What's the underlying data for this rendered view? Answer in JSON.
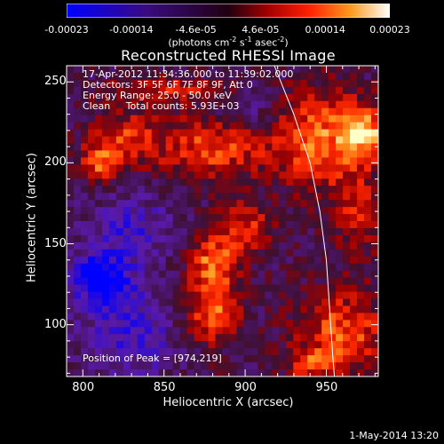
{
  "colorbar": {
    "ticks": [
      "-0.00023",
      "-0.00014",
      "-4.6e-05",
      "4.6e-05",
      "0.00014",
      "0.00023"
    ],
    "units": "(photons cm",
    "units_exp1": "-2",
    "units_mid": " s",
    "units_exp2": "-1",
    "units_mid2": " asec",
    "units_exp3": "-2",
    "units_end": ")",
    "range": [
      -0.00023,
      0.00023
    ]
  },
  "annotations": {
    "time_range": "17-Apr-2012 11:34:36.000 to 11:39:02.000",
    "detectors": "Detectors: 3F 5F 6F 7F 8F 9F, Att 0",
    "energy_range": "Energy Range: 25.0 - 50.0 keV",
    "clean_counts": "Clean     Total counts: 5.93E+03",
    "peak_position": "Position of Peak = [974,219]"
  },
  "footer": {
    "datestamp": "1-May-2014 13:20"
  },
  "chart_data": {
    "type": "heatmap",
    "title": "Reconstructed RHESSI Image",
    "xlabel": "Heliocentric X (arcsec)",
    "ylabel": "Heliocentric Y (arcsec)",
    "xlim": [
      790,
      982
    ],
    "ylim": [
      68,
      260
    ],
    "xticks": [
      800,
      850,
      900,
      950
    ],
    "yticks": [
      100,
      150,
      200,
      250
    ],
    "grid": false,
    "colormap": [
      "#0000ff",
      "#5a1aa8",
      "#3d1030",
      "#a00000",
      "#ff2800",
      "#ff9a20",
      "#ffffc8"
    ],
    "limb_curve": [
      [
        918,
        260
      ],
      [
        930,
        230
      ],
      [
        940,
        200
      ],
      [
        946,
        170
      ],
      [
        950,
        140
      ],
      [
        952,
        110
      ],
      [
        954,
        80
      ],
      [
        955,
        68
      ]
    ],
    "blobs": [
      {
        "x": 880,
        "y": 210,
        "amp": 0.7,
        "sx": 25,
        "sy": 14
      },
      {
        "x": 945,
        "y": 215,
        "amp": 0.8,
        "sx": 18,
        "sy": 22
      },
      {
        "x": 974,
        "y": 219,
        "amp": 0.95,
        "sx": 10,
        "sy": 12
      },
      {
        "x": 825,
        "y": 215,
        "amp": 0.6,
        "sx": 15,
        "sy": 12
      },
      {
        "x": 810,
        "y": 200,
        "amp": 0.65,
        "sx": 8,
        "sy": 8
      },
      {
        "x": 900,
        "y": 160,
        "amp": 0.6,
        "sx": 12,
        "sy": 12
      },
      {
        "x": 880,
        "y": 140,
        "amp": 0.75,
        "sx": 10,
        "sy": 10
      },
      {
        "x": 880,
        "y": 110,
        "amp": 0.85,
        "sx": 12,
        "sy": 15
      },
      {
        "x": 960,
        "y": 95,
        "amp": 0.75,
        "sx": 20,
        "sy": 18
      },
      {
        "x": 940,
        "y": 75,
        "amp": 0.6,
        "sx": 10,
        "sy": 6
      },
      {
        "x": 970,
        "y": 170,
        "amp": 0.5,
        "sx": 12,
        "sy": 20
      },
      {
        "x": 860,
        "y": 245,
        "amp": 0.5,
        "sx": 30,
        "sy": 6
      },
      {
        "x": 810,
        "y": 128,
        "amp": -0.85,
        "sx": 14,
        "sy": 12
      },
      {
        "x": 830,
        "y": 95,
        "amp": -0.5,
        "sx": 20,
        "sy": 20
      },
      {
        "x": 830,
        "y": 160,
        "amp": -0.45,
        "sx": 18,
        "sy": 14
      },
      {
        "x": 900,
        "y": 235,
        "amp": -0.35,
        "sx": 15,
        "sy": 10
      }
    ]
  }
}
